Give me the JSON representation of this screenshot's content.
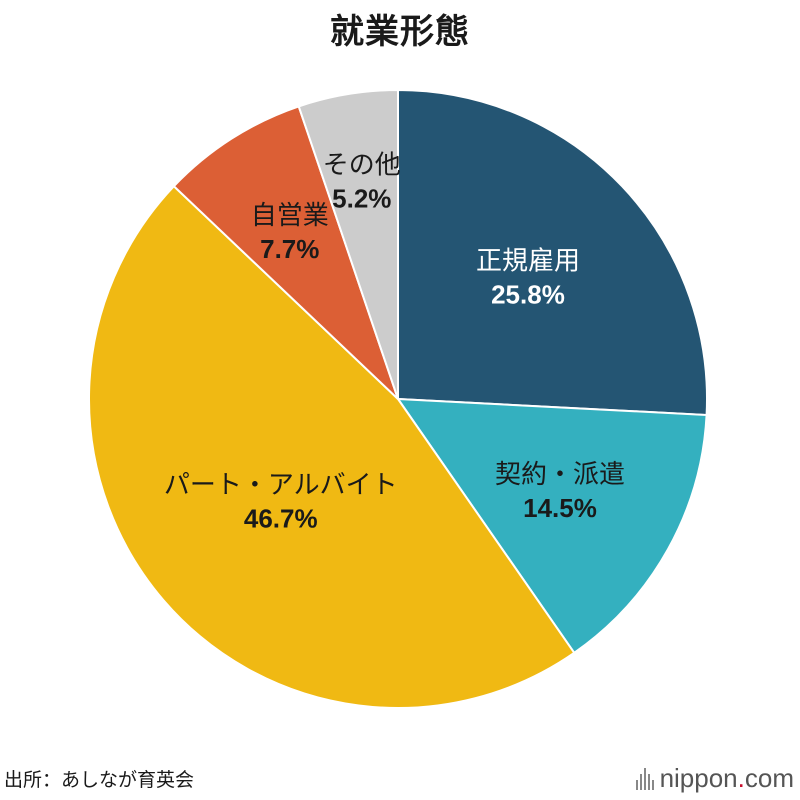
{
  "header": {
    "title": "就業形態"
  },
  "footer": {
    "source": "出所：あしなが育英会",
    "brand_name": "nippon",
    "brand_dot": ".",
    "brand_tld": "com"
  },
  "chart_data": {
    "type": "pie",
    "title": "就業形態",
    "start_angle_deg": 0,
    "direction": "clockwise",
    "slices": [
      {
        "label": "正規雇用",
        "value_label": "25.8%",
        "value": 25.8,
        "color": "#245573",
        "label_color": "#ffffff"
      },
      {
        "label": "契約・派遣",
        "value_label": "14.5%",
        "value": 14.5,
        "color": "#34b0bf",
        "label_color": "#1a1a1a"
      },
      {
        "label": "パート・アルバイト",
        "value_label": "46.7%",
        "value": 46.7,
        "color": "#f0b913",
        "label_color": "#1a1a1a"
      },
      {
        "label": "自営業",
        "value_label": "7.7%",
        "value": 7.7,
        "color": "#dc5f35",
        "label_color": "#1a1a1a"
      },
      {
        "label": "その他",
        "value_label": "5.2%",
        "value": 5.2,
        "color": "#cccccc",
        "label_color": "#1a1a1a"
      }
    ]
  }
}
